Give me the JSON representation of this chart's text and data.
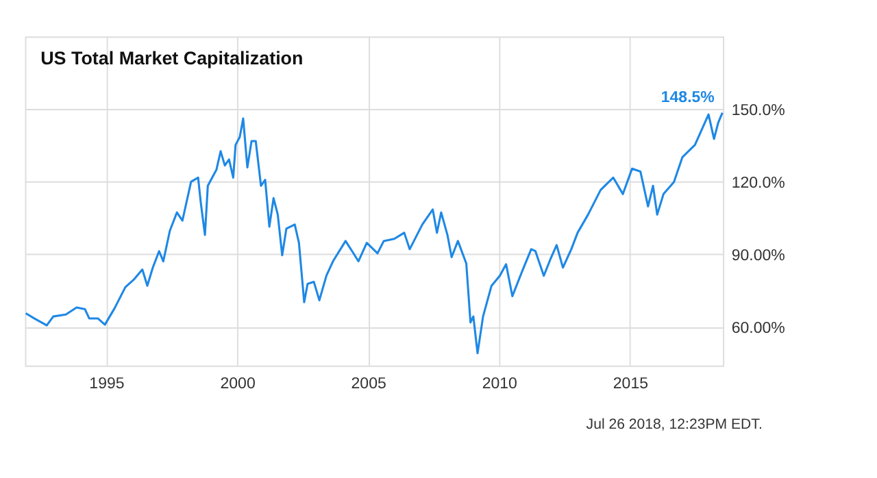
{
  "chart_data": {
    "type": "line",
    "title": "US Total Market Capitalization",
    "annotations": [
      "Jul 26 2018, 12:23PM EDT."
    ],
    "xlim": [
      1991.9,
      2018.55
    ],
    "xticks": [
      1995,
      2000,
      2005,
      2010,
      2015
    ],
    "ylim": [
      44,
      180
    ],
    "yticks": [
      {
        "value": 60,
        "label": "60.00%"
      },
      {
        "value": 90,
        "label": "90.00%"
      },
      {
        "value": 120,
        "label": "120.0%"
      },
      {
        "value": 150,
        "label": "150.0%"
      }
    ],
    "grid": true,
    "line_style": "solid",
    "marker": "none",
    "series": [
      {
        "color": "#1e88e5",
        "x": [
          1991.93,
          1992.25,
          1992.73,
          1992.98,
          1993.46,
          1993.87,
          1994.19,
          1994.35,
          1994.68,
          1994.95,
          1995.32,
          1995.73,
          1996.05,
          1996.38,
          1996.57,
          1996.78,
          1997.02,
          1997.18,
          1997.43,
          1997.7,
          1997.91,
          1998.24,
          1998.51,
          1998.61,
          1998.77,
          1998.88,
          1999.21,
          1999.37,
          1999.53,
          1999.69,
          1999.85,
          1999.94,
          2000.1,
          2000.23,
          2000.39,
          2000.55,
          2000.71,
          2000.91,
          2001.07,
          2001.23,
          2001.39,
          2001.55,
          2001.72,
          2001.88,
          2002.2,
          2002.36,
          2002.56,
          2002.69,
          2002.93,
          2003.14,
          2003.41,
          2003.66,
          2004.14,
          2004.39,
          2004.63,
          2004.95,
          2005.36,
          2005.6,
          2006.0,
          2006.38,
          2006.59,
          2007.07,
          2007.47,
          2007.63,
          2007.79,
          2008.03,
          2008.19,
          2008.43,
          2008.75,
          2008.91,
          2009.02,
          2009.18,
          2009.39,
          2009.71,
          2010.03,
          2010.27,
          2010.51,
          2010.91,
          2011.23,
          2011.39,
          2011.71,
          2011.96,
          2012.2,
          2012.44,
          2012.76,
          2013.0,
          2013.4,
          2013.88,
          2014.36,
          2014.73,
          2015.08,
          2015.4,
          2015.69,
          2015.88,
          2016.04,
          2016.28,
          2016.68,
          2017.0,
          2017.48,
          2018.0,
          2018.21,
          2018.37,
          2018.53
        ],
        "values": [
          65.6,
          63.5,
          60.6,
          64.3,
          65.1,
          68.0,
          67.3,
          63.5,
          63.5,
          60.9,
          67.7,
          76.4,
          79.5,
          83.7,
          77.0,
          84.5,
          91.3,
          87.1,
          99.7,
          107.3,
          103.9,
          120.0,
          121.7,
          111.5,
          98.0,
          118.3,
          125.0,
          132.6,
          126.7,
          129.2,
          121.7,
          135.2,
          138.5,
          146.1,
          125.9,
          136.8,
          136.8,
          118.3,
          120.8,
          101.4,
          113.2,
          106.5,
          89.6,
          100.6,
          102.3,
          94.7,
          70.2,
          77.8,
          78.6,
          71.0,
          81.2,
          87.1,
          95.5,
          91.3,
          87.1,
          94.7,
          90.4,
          95.5,
          96.4,
          98.9,
          92.1,
          102.3,
          108.5,
          98.9,
          107.3,
          98.0,
          88.8,
          95.5,
          86.2,
          61.8,
          64.3,
          49.1,
          64.3,
          76.9,
          81.1,
          85.9,
          72.7,
          83.7,
          92.1,
          91.3,
          81.1,
          87.9,
          93.8,
          84.5,
          92.1,
          98.9,
          106.4,
          116.6,
          121.7,
          114.9,
          125.4,
          124.2,
          109.8,
          118.3,
          106.4,
          114.9,
          119.9,
          130.1,
          135.2,
          147.8,
          137.7,
          144.4,
          148.5
        ],
        "value_labels": [
          null,
          null,
          null,
          null,
          null,
          null,
          null,
          null,
          null,
          null,
          null,
          null,
          null,
          null,
          null,
          null,
          null,
          null,
          null,
          null,
          null,
          null,
          null,
          null,
          null,
          null,
          null,
          null,
          null,
          null,
          null,
          null,
          null,
          null,
          null,
          null,
          null,
          null,
          null,
          null,
          null,
          null,
          null,
          null,
          null,
          null,
          null,
          null,
          null,
          null,
          null,
          null,
          null,
          null,
          null,
          null,
          null,
          null,
          null,
          null,
          null,
          null,
          null,
          null,
          null,
          null,
          null,
          null,
          null,
          null,
          null,
          null,
          null,
          null,
          null,
          null,
          null,
          null,
          null,
          null,
          null,
          null,
          null,
          null,
          null,
          null,
          null,
          null,
          null,
          null,
          null,
          null,
          null,
          null,
          null,
          null,
          null,
          null,
          null,
          null,
          null,
          null,
          "148.5%"
        ]
      }
    ]
  }
}
